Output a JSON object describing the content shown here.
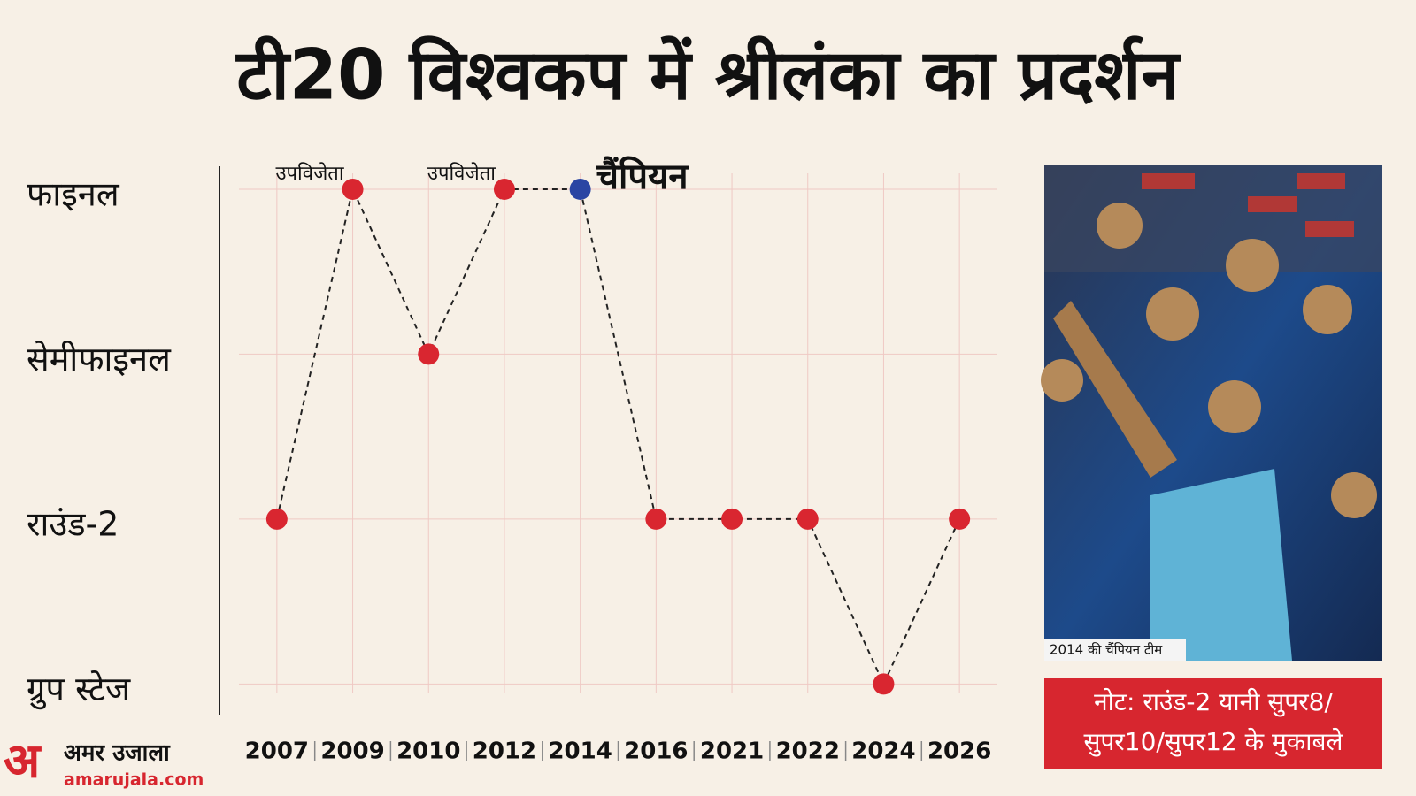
{
  "chart_data": {
    "type": "line",
    "title": "टी20 विश्वकप में श्रीलंका का प्रदर्शन",
    "categories": [
      "2007",
      "2009",
      "2010",
      "2012",
      "2014",
      "2016",
      "2021",
      "2022",
      "2024",
      "2026"
    ],
    "series": [
      {
        "values": [
          2,
          4,
          3,
          4,
          4,
          2,
          2,
          2,
          1,
          2
        ],
        "point_colors": [
          "#d92630",
          "#d92630",
          "#d92630",
          "#d92630",
          "#2a45a3",
          "#d92630",
          "#d92630",
          "#d92630",
          "#d92630",
          "#d92630"
        ],
        "point_labels": [
          null,
          "उपविजेता",
          null,
          "उपविजेता",
          "चैंपियन",
          null,
          null,
          null,
          null,
          null
        ],
        "color": "#222"
      }
    ],
    "ylim": [
      0.9,
      4.15
    ],
    "yticks": [
      {
        "value": 4,
        "label": "फाइनल"
      },
      {
        "value": 3,
        "label": "सेमीफाइनल"
      },
      {
        "value": 2,
        "label": "राउंड-2"
      },
      {
        "value": 1,
        "label": "ग्रुप स्टेज"
      }
    ],
    "grid": true
  },
  "photo_caption": "2014 की चैंपियन टीम",
  "note": [
    "नोट: राउंड-2 यानी सुपर8/",
    "सुपर10/सुपर12 के मुकाबले"
  ],
  "logo": {
    "mark": "अ",
    "name": "अमर उजाला",
    "site": "amarujala.com"
  }
}
